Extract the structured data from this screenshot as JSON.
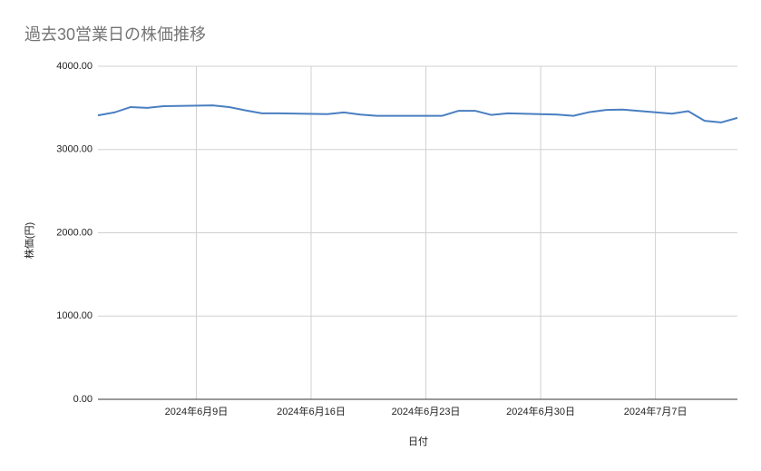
{
  "chart_data": {
    "type": "line",
    "title": "過去30営業日の株価推移",
    "xlabel": "日付",
    "ylabel": "株価(円)",
    "x": [
      "2024-06-03",
      "2024-06-04",
      "2024-06-05",
      "2024-06-06",
      "2024-06-07",
      "2024-06-10",
      "2024-06-11",
      "2024-06-12",
      "2024-06-13",
      "2024-06-14",
      "2024-06-17",
      "2024-06-18",
      "2024-06-19",
      "2024-06-20",
      "2024-06-21",
      "2024-06-24",
      "2024-06-25",
      "2024-06-26",
      "2024-06-27",
      "2024-06-28",
      "2024-07-01",
      "2024-07-02",
      "2024-07-03",
      "2024-07-04",
      "2024-07-05",
      "2024-07-08",
      "2024-07-09",
      "2024-07-10",
      "2024-07-11",
      "2024-07-12"
    ],
    "series": [
      {
        "name": "株価(円)",
        "color": "#4a7fc1",
        "values": [
          3410,
          3445,
          3510,
          3500,
          3520,
          3530,
          3510,
          3470,
          3435,
          3435,
          3425,
          3445,
          3420,
          3405,
          3405,
          3405,
          3465,
          3465,
          3415,
          3435,
          3420,
          3405,
          3450,
          3475,
          3480,
          3430,
          3460,
          3345,
          3325,
          3380
        ]
      }
    ],
    "xlim": [
      "2024-06-03",
      "2024-07-12"
    ],
    "xticks": [
      {
        "value": "2024-06-09",
        "label": "2024年6月9日"
      },
      {
        "value": "2024-06-16",
        "label": "2024年6月16日"
      },
      {
        "value": "2024-06-23",
        "label": "2024年6月23日"
      },
      {
        "value": "2024-06-30",
        "label": "2024年6月30日"
      },
      {
        "value": "2024-07-07",
        "label": "2024年7月7日"
      }
    ],
    "ylim": [
      0,
      4000
    ],
    "yticks": [
      {
        "value": 0,
        "label": "0.00"
      },
      {
        "value": 1000,
        "label": "1000.00"
      },
      {
        "value": 2000,
        "label": "2000.00"
      },
      {
        "value": 3000,
        "label": "3000.00"
      },
      {
        "value": 4000,
        "label": "4000.00"
      }
    ],
    "grid": true
  }
}
